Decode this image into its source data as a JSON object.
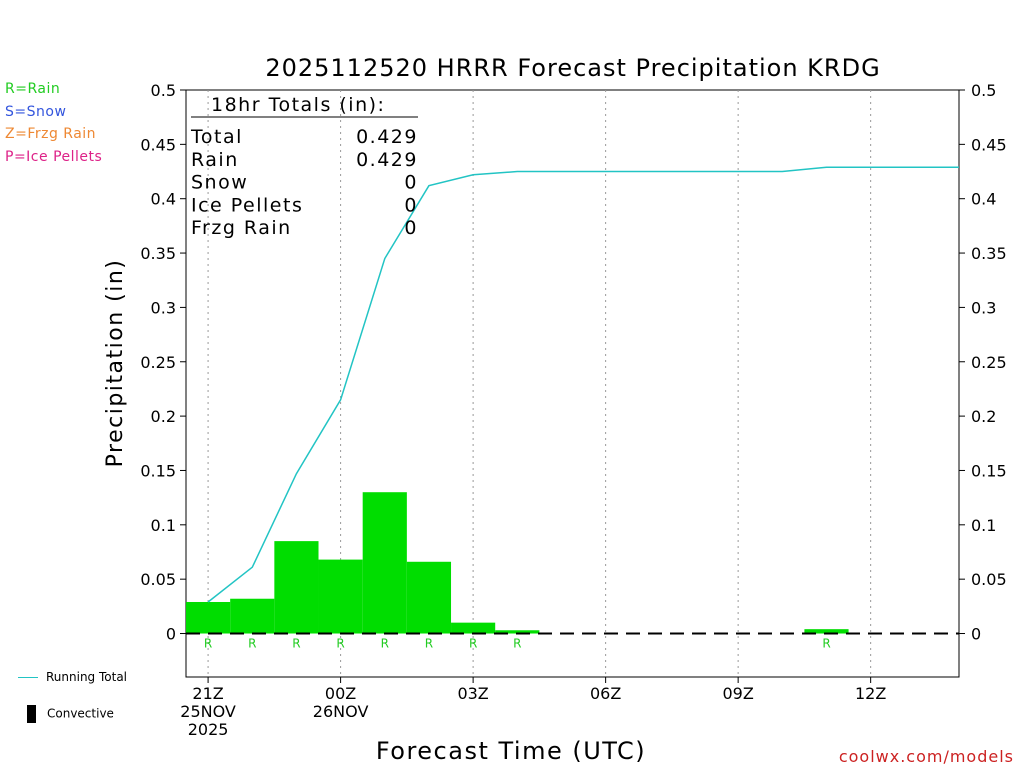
{
  "page": {
    "title": "2025112520 HRRR Forecast Precipitation KRDG",
    "credit": "coolwx.com/models"
  },
  "type_legend": [
    {
      "label": "R=Rain",
      "color": "#22cc22"
    },
    {
      "label": "S=Snow",
      "color": "#3355dd"
    },
    {
      "label": "Z=Frzg Rain",
      "color": "#ee8833"
    },
    {
      "label": "P=Ice Pellets",
      "color": "#dd2288"
    }
  ],
  "line_legend": {
    "running_total_label": "Running Total",
    "running_total_color": "#22c4c4",
    "convective_label": "Convective"
  },
  "totals_box": {
    "header": "18hr Totals (in):",
    "rows": [
      {
        "label": "Total",
        "value": "0.429"
      },
      {
        "label": "Rain",
        "value": "0.429"
      },
      {
        "label": "Snow",
        "value": "0"
      },
      {
        "label": "Ice Pellets",
        "value": "0"
      },
      {
        "label": "Frzg Rain",
        "value": "0"
      }
    ]
  },
  "chart_data": {
    "type": "bar",
    "title": "2025112520 HRRR Forecast Precipitation KRDG",
    "xlabel": "Forecast Time (UTC)",
    "ylabel": "Precipitation (in)",
    "ylim": [
      -0.04,
      0.5
    ],
    "yticks": [
      0,
      0.05,
      0.1,
      0.15,
      0.2,
      0.25,
      0.3,
      0.35,
      0.4,
      0.45,
      0.5
    ],
    "ytick_labels": [
      "0",
      "0.05",
      "0.1",
      "0.15",
      "0.2",
      "0.25",
      "0.3",
      "0.35",
      "0.4",
      "0.45",
      "0.5"
    ],
    "xlim_hours": [
      20.5,
      38
    ],
    "xticks": [
      {
        "hour": 21,
        "lines": [
          "21Z",
          "25NOV",
          "2025"
        ]
      },
      {
        "hour": 24,
        "lines": [
          "00Z",
          "26NOV"
        ]
      },
      {
        "hour": 27,
        "lines": [
          "03Z"
        ]
      },
      {
        "hour": 30,
        "lines": [
          "06Z"
        ]
      },
      {
        "hour": 33,
        "lines": [
          "09Z"
        ]
      },
      {
        "hour": 36,
        "lines": [
          "12Z"
        ]
      }
    ],
    "bar_color": "#00dd00",
    "line_color": "#22c4c4",
    "grid": "vertical dotted at major ticks",
    "hourly_precip": [
      {
        "hour": 21,
        "value": 0.029,
        "type": "R"
      },
      {
        "hour": 22,
        "value": 0.032,
        "type": "R"
      },
      {
        "hour": 23,
        "value": 0.085,
        "type": "R"
      },
      {
        "hour": 24,
        "value": 0.068,
        "type": "R"
      },
      {
        "hour": 25,
        "value": 0.13,
        "type": "R"
      },
      {
        "hour": 26,
        "value": 0.066,
        "type": "R"
      },
      {
        "hour": 27,
        "value": 0.01,
        "type": "R"
      },
      {
        "hour": 28,
        "value": 0.003,
        "type": "R"
      },
      {
        "hour": 29,
        "value": 0,
        "type": ""
      },
      {
        "hour": 30,
        "value": 0,
        "type": ""
      },
      {
        "hour": 31,
        "value": 0,
        "type": ""
      },
      {
        "hour": 32,
        "value": 0,
        "type": ""
      },
      {
        "hour": 33,
        "value": 0,
        "type": ""
      },
      {
        "hour": 34,
        "value": 0,
        "type": ""
      },
      {
        "hour": 35,
        "value": 0.004,
        "type": "R"
      },
      {
        "hour": 36,
        "value": 0,
        "type": ""
      },
      {
        "hour": 37,
        "value": 0,
        "type": ""
      }
    ],
    "running_total": [
      {
        "hour": 21,
        "value": 0.029
      },
      {
        "hour": 22,
        "value": 0.061
      },
      {
        "hour": 23,
        "value": 0.147
      },
      {
        "hour": 24,
        "value": 0.215
      },
      {
        "hour": 25,
        "value": 0.345
      },
      {
        "hour": 26,
        "value": 0.412
      },
      {
        "hour": 27,
        "value": 0.422
      },
      {
        "hour": 28,
        "value": 0.425
      },
      {
        "hour": 29,
        "value": 0.425
      },
      {
        "hour": 30,
        "value": 0.425
      },
      {
        "hour": 31,
        "value": 0.425
      },
      {
        "hour": 32,
        "value": 0.425
      },
      {
        "hour": 33,
        "value": 0.425
      },
      {
        "hour": 34,
        "value": 0.425
      },
      {
        "hour": 35,
        "value": 0.429
      },
      {
        "hour": 36,
        "value": 0.429
      },
      {
        "hour": 37,
        "value": 0.429
      },
      {
        "hour": 38,
        "value": 0.429
      }
    ]
  }
}
